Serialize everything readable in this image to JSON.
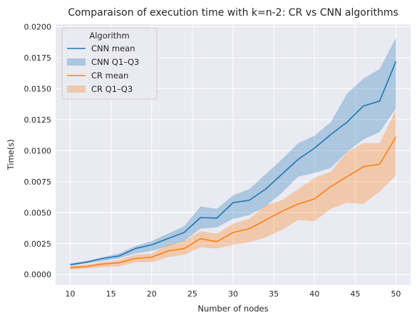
{
  "chart_data": {
    "type": "line",
    "title": "Comparaison of execution time with  k=n-2: CR vs CNN algorithms",
    "xlabel": "Number of nodes",
    "ylabel": "Time(s)",
    "xlim": [
      8.2,
      51.8
    ],
    "ylim": [
      -0.00085,
      0.0202
    ],
    "xticks": [
      10,
      15,
      20,
      25,
      30,
      35,
      40,
      45,
      50
    ],
    "yticks": [
      0.0,
      0.0025,
      0.005,
      0.0075,
      0.01,
      0.0125,
      0.015,
      0.0175,
      0.02
    ],
    "ytick_labels": [
      "0.0000",
      "0.0025",
      "0.0050",
      "0.0075",
      "0.0100",
      "0.0125",
      "0.0150",
      "0.0175",
      "0.0200"
    ],
    "grid": true,
    "legend": {
      "title": "Algorithm",
      "placement": "top-left",
      "entries": [
        "CNN mean",
        "CNN Q1–Q3",
        "CR mean",
        "CR Q1–Q3"
      ]
    },
    "x": [
      10,
      12,
      14,
      16,
      18,
      20,
      22,
      24,
      26,
      28,
      30,
      32,
      34,
      36,
      38,
      40,
      42,
      44,
      46,
      48,
      50
    ],
    "series": [
      {
        "name": "CNN mean",
        "color": "#1f77b4",
        "values": [
          0.0008,
          0.001,
          0.0013,
          0.0015,
          0.0021,
          0.0024,
          0.0029,
          0.0034,
          0.0046,
          0.00455,
          0.0058,
          0.006,
          0.0069,
          0.0081,
          0.0093,
          0.0102,
          0.0113,
          0.0123,
          0.0136,
          0.014,
          0.0172
        ],
        "band": {
          "name": "CNN Q1–Q3",
          "color": "#1f77b4",
          "q1": [
            0.0007,
            0.0009,
            0.0011,
            0.0013,
            0.0017,
            0.0019,
            0.0023,
            0.0027,
            0.0037,
            0.0038,
            0.0045,
            0.0048,
            0.0055,
            0.0066,
            0.0079,
            0.0082,
            0.0086,
            0.0099,
            0.0109,
            0.0115,
            0.0134
          ],
          "q3": [
            0.0009,
            0.0011,
            0.0014,
            0.0017,
            0.0023,
            0.0027,
            0.0033,
            0.0039,
            0.0055,
            0.0053,
            0.0064,
            0.0069,
            0.0081,
            0.0093,
            0.0106,
            0.0112,
            0.0123,
            0.0146,
            0.0158,
            0.0166,
            0.0191
          ]
        }
      },
      {
        "name": "CR mean",
        "color": "#ff7f0e",
        "values": [
          0.00055,
          0.00065,
          0.00085,
          0.00095,
          0.0013,
          0.0014,
          0.0019,
          0.0021,
          0.0029,
          0.00265,
          0.0034,
          0.0037,
          0.0044,
          0.0051,
          0.0057,
          0.0061,
          0.0071,
          0.0079,
          0.0087,
          0.0089,
          0.0111
        ],
        "band": {
          "name": "CR Q1–Q3",
          "color": "#ff7f0e",
          "q1": [
            0.0004,
            0.0005,
            0.0006,
            0.00065,
            0.001,
            0.001,
            0.0014,
            0.0016,
            0.0022,
            0.0021,
            0.0024,
            0.0026,
            0.003,
            0.0036,
            0.0044,
            0.0043,
            0.0053,
            0.0058,
            0.0057,
            0.0067,
            0.008
          ],
          "q3": [
            0.0007,
            0.0008,
            0.001,
            0.0012,
            0.0016,
            0.0017,
            0.0024,
            0.0027,
            0.0035,
            0.0033,
            0.0041,
            0.0045,
            0.0056,
            0.006,
            0.0069,
            0.0078,
            0.0083,
            0.0099,
            0.0106,
            0.0106,
            0.0133
          ]
        }
      }
    ]
  }
}
